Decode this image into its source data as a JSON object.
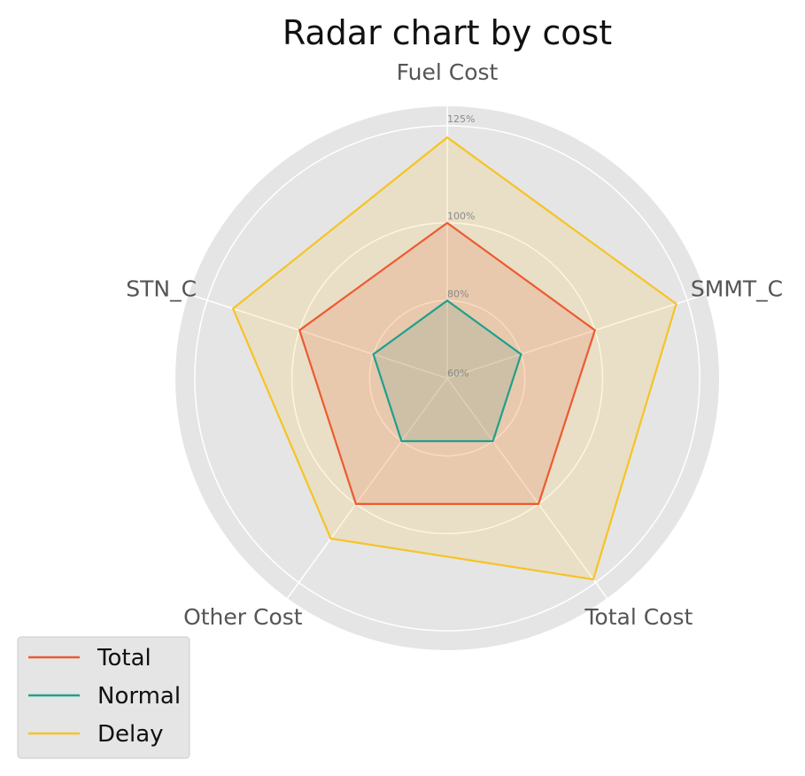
{
  "chart_data": {
    "type": "radar",
    "title": "Radar chart by cost",
    "axes": [
      "Fuel Cost",
      "SMMT_C",
      "Total Cost",
      "Other Cost",
      "STN_C"
    ],
    "r_range": [
      60,
      130
    ],
    "r_ticks": [
      60,
      80,
      100,
      125
    ],
    "r_tick_labels": [
      "60%",
      "80%",
      "100%",
      "125%"
    ],
    "series": [
      {
        "name": "Total",
        "color": "#EE5A30",
        "values": [
          100,
          100,
          100,
          100,
          100
        ]
      },
      {
        "name": "Normal",
        "color": "#20A08C",
        "values": [
          80,
          80,
          80,
          80,
          80
        ]
      },
      {
        "name": "Delay",
        "color": "#F6C325",
        "values": [
          122,
          122,
          124,
          111,
          118
        ]
      }
    ],
    "grid": true,
    "legend_position": "lower-left"
  }
}
